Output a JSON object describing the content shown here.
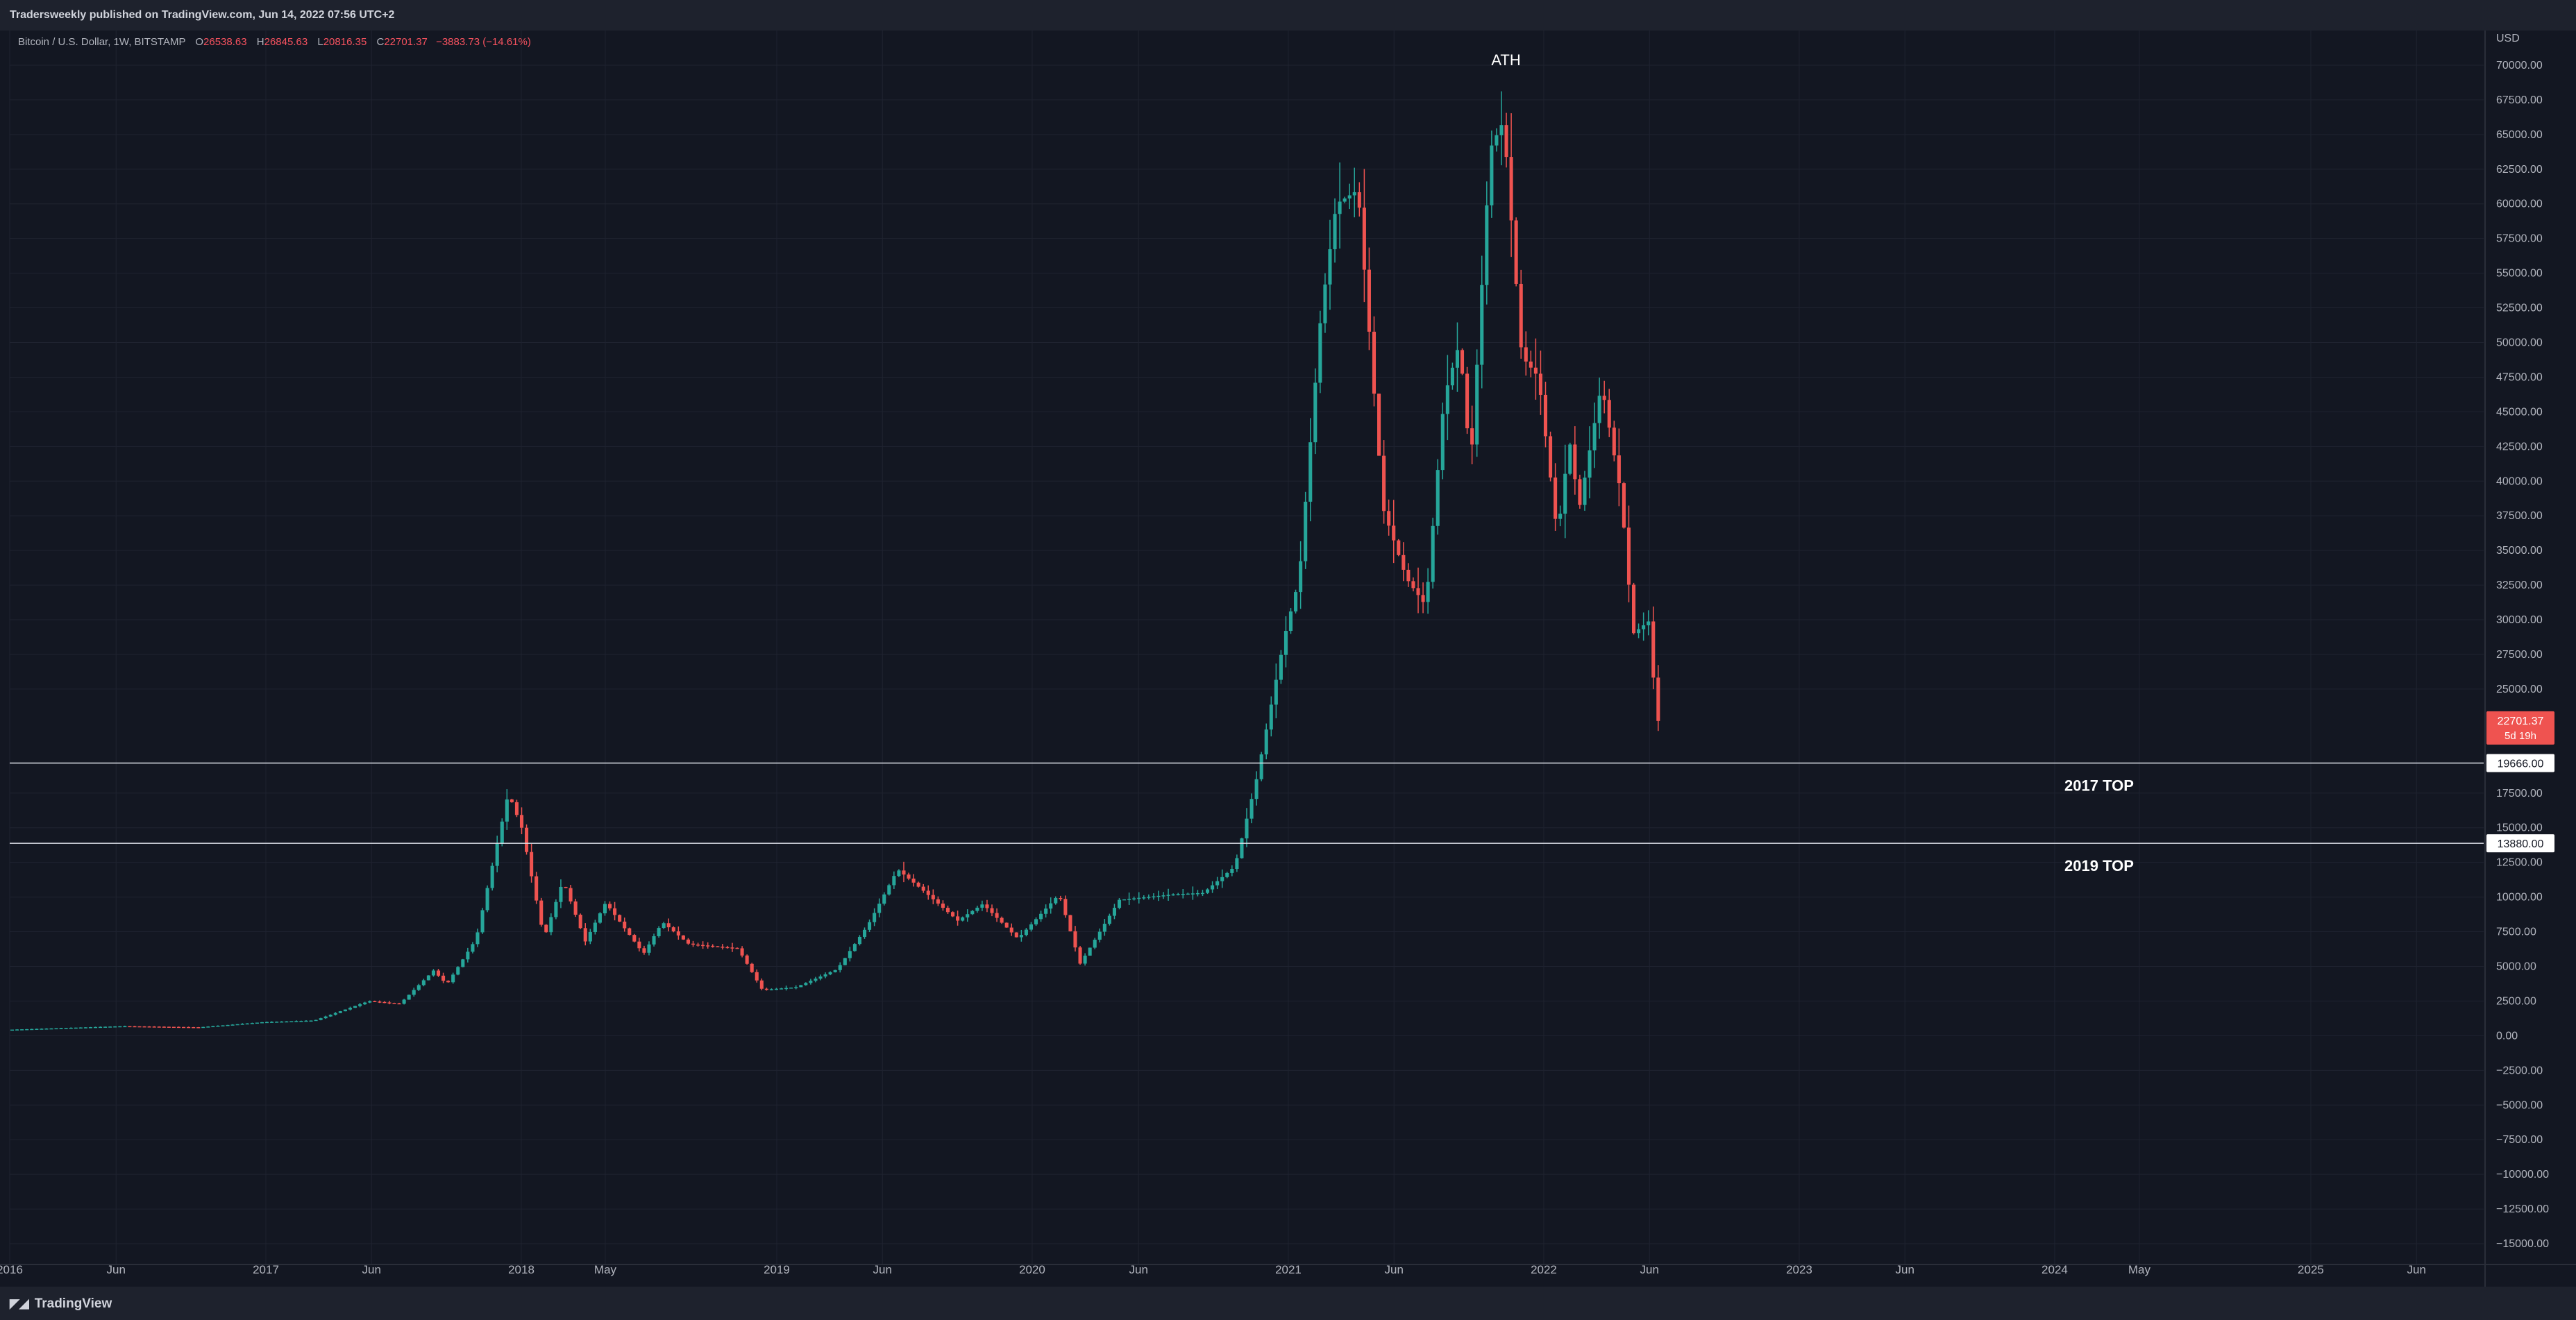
{
  "header": {
    "published": "Tradersweekly published on TradingView.com, Jun 14, 2022 07:56 UTC+2"
  },
  "footer": {
    "brand": "TradingView",
    "logo_icon": "tradingview-logo-icon"
  },
  "legend": {
    "symbol": "Bitcoin / U.S. Dollar, 1W, BITSTAMP",
    "open_label": "O",
    "open": "26538.63",
    "high_label": "H",
    "high": "26845.63",
    "low_label": "L",
    "low": "20816.35",
    "close_label": "C",
    "close": "22701.37",
    "change": "−3883.73 (−14.61%)"
  },
  "chart_data": {
    "type": "candlestick",
    "currency_label": "USD",
    "x_ticks": [
      {
        "label": "2016",
        "date": "2016-01-01"
      },
      {
        "label": "Jun",
        "date": "2016-06-01"
      },
      {
        "label": "2017",
        "date": "2017-01-01"
      },
      {
        "label": "Jun",
        "date": "2017-06-01"
      },
      {
        "label": "2018",
        "date": "2018-01-01"
      },
      {
        "label": "May",
        "date": "2018-05-01"
      },
      {
        "label": "2019",
        "date": "2019-01-01"
      },
      {
        "label": "Jun",
        "date": "2019-06-01"
      },
      {
        "label": "2020",
        "date": "2020-01-01"
      },
      {
        "label": "Jun",
        "date": "2020-06-01"
      },
      {
        "label": "2021",
        "date": "2021-01-01"
      },
      {
        "label": "Jun",
        "date": "2021-06-01"
      },
      {
        "label": "2022",
        "date": "2022-01-01"
      },
      {
        "label": "Jun",
        "date": "2022-06-01"
      },
      {
        "label": "2023",
        "date": "2023-01-01"
      },
      {
        "label": "Jun",
        "date": "2023-06-01"
      },
      {
        "label": "2024",
        "date": "2024-01-01"
      },
      {
        "label": "May",
        "date": "2024-05-01"
      },
      {
        "label": "2025",
        "date": "2025-01-01"
      },
      {
        "label": "Jun",
        "date": "2025-06-01"
      }
    ],
    "x_range": [
      "2016-01-01",
      "2025-09-05"
    ],
    "y_range": [
      -16500,
      72500
    ],
    "y_ticks": [
      70000,
      67500,
      65000,
      62500,
      60000,
      57500,
      55000,
      52500,
      50000,
      47500,
      45000,
      42500,
      40000,
      37500,
      35000,
      32500,
      30000,
      27500,
      25000,
      17500,
      15000,
      12500,
      10000,
      7500,
      5000,
      2500,
      0,
      -2500,
      -5000,
      -7500,
      -10000,
      -12500,
      -15000
    ],
    "y_tick_labels": [
      "70000.00",
      "67500.00",
      "65000.00",
      "62500.00",
      "60000.00",
      "57500.00",
      "55000.00",
      "52500.00",
      "50000.00",
      "47500.00",
      "45000.00",
      "42500.00",
      "40000.00",
      "37500.00",
      "35000.00",
      "32500.00",
      "30000.00",
      "27500.00",
      "25000.00",
      "17500.00",
      "15000.00",
      "12500.00",
      "10000.00",
      "7500.00",
      "5000.00",
      "2500.00",
      "0.00",
      "−2500.00",
      "−5000.00",
      "−7500.00",
      "−10000.00",
      "−12500.00",
      "−15000.00"
    ],
    "anchors": [
      [
        "2016-01-01",
        430
      ],
      [
        "2016-06-15",
        690
      ],
      [
        "2016-10-01",
        610
      ],
      [
        "2017-01-01",
        980
      ],
      [
        "2017-03-15",
        1100
      ],
      [
        "2017-06-01",
        2500
      ],
      [
        "2017-07-15",
        2300
      ],
      [
        "2017-09-01",
        4700
      ],
      [
        "2017-09-20",
        3700
      ],
      [
        "2017-11-01",
        7000
      ],
      [
        "2017-12-17",
        17500
      ],
      [
        "2018-01-05",
        15000
      ],
      [
        "2018-02-06",
        7000
      ],
      [
        "2018-03-05",
        11200
      ],
      [
        "2018-04-06",
        6800
      ],
      [
        "2018-05-05",
        9600
      ],
      [
        "2018-06-28",
        5900
      ],
      [
        "2018-07-25",
        8200
      ],
      [
        "2018-09-01",
        6600
      ],
      [
        "2018-11-10",
        6300
      ],
      [
        "2018-12-15",
        3300
      ],
      [
        "2019-02-01",
        3500
      ],
      [
        "2019-04-01",
        4800
      ],
      [
        "2019-05-15",
        8000
      ],
      [
        "2019-06-26",
        12000
      ],
      [
        "2019-08-01",
        10500
      ],
      [
        "2019-09-20",
        8300
      ],
      [
        "2019-10-26",
        9500
      ],
      [
        "2019-12-15",
        7000
      ],
      [
        "2020-02-12",
        10200
      ],
      [
        "2020-03-13",
        5200
      ],
      [
        "2020-05-08",
        9800
      ],
      [
        "2020-07-25",
        10200
      ],
      [
        "2020-09-05",
        10300
      ],
      [
        "2020-10-20",
        12200
      ],
      [
        "2020-11-20",
        18500
      ],
      [
        "2020-12-31",
        29000
      ],
      [
        "2021-01-20",
        33000
      ],
      [
        "2021-02-20",
        52000
      ],
      [
        "2021-03-14",
        60000
      ],
      [
        "2021-04-14",
        61000
      ],
      [
        "2021-05-20",
        38000
      ],
      [
        "2021-06-22",
        33000
      ],
      [
        "2021-07-20",
        31000
      ],
      [
        "2021-08-15",
        46000
      ],
      [
        "2021-09-06",
        50000
      ],
      [
        "2021-09-22",
        41000
      ],
      [
        "2021-10-20",
        64000
      ],
      [
        "2021-11-08",
        66000
      ],
      [
        "2021-12-04",
        49000
      ],
      [
        "2021-12-28",
        47500
      ],
      [
        "2022-01-24",
        36000
      ],
      [
        "2022-02-10",
        43000
      ],
      [
        "2022-02-24",
        38000
      ],
      [
        "2022-03-28",
        47000
      ],
      [
        "2022-04-25",
        39000
      ],
      [
        "2022-05-12",
        29000
      ],
      [
        "2022-06-06",
        30000
      ],
      [
        "2022-06-13",
        22701
      ]
    ],
    "current_price": {
      "value": 22701.37,
      "label": "22701.37",
      "countdown": "5d 19h"
    },
    "levels": [
      {
        "value": 19666,
        "label": "19666.00",
        "annotation": "2017 TOP"
      },
      {
        "value": 13880,
        "label": "13880.00",
        "annotation": "2019 TOP"
      }
    ],
    "annotations": [
      {
        "text": "ATH",
        "value": 69000,
        "date": "2021-11-08"
      }
    ],
    "grid": true,
    "colors": {
      "up": "#26a69a",
      "down": "#ef5350",
      "background": "#131722",
      "grid": "#1f2330",
      "text": "#b2b5be",
      "line": "#e0e3eb",
      "price_badge": "#ef5350"
    }
  }
}
